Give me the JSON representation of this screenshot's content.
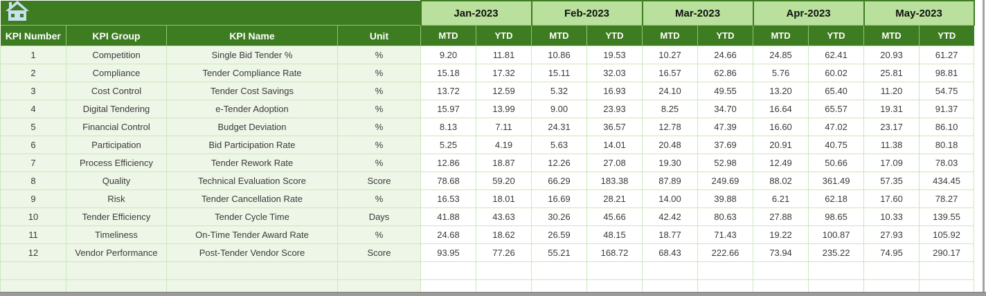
{
  "banner": {
    "home_icon": "home-icon"
  },
  "table": {
    "columns": [
      "KPI Number",
      "KPI Group",
      "KPI Name",
      "Unit"
    ],
    "months": [
      "Jan-2023",
      "Feb-2023",
      "Mar-2023",
      "Apr-2023",
      "May-2023"
    ],
    "period_headers": [
      "MTD",
      "YTD"
    ],
    "rows": [
      {
        "kpi_number": "1",
        "kpi_group": "Competition",
        "kpi_name": "Single Bid Tender %",
        "unit": "%",
        "values": [
          "9.20",
          "11.81",
          "10.86",
          "19.53",
          "10.27",
          "24.66",
          "24.85",
          "62.41",
          "20.93",
          "61.27"
        ]
      },
      {
        "kpi_number": "2",
        "kpi_group": "Compliance",
        "kpi_name": "Tender Compliance Rate",
        "unit": "%",
        "values": [
          "15.18",
          "17.32",
          "15.11",
          "32.03",
          "16.57",
          "62.86",
          "5.76",
          "60.02",
          "25.81",
          "98.81"
        ]
      },
      {
        "kpi_number": "3",
        "kpi_group": "Cost Control",
        "kpi_name": "Tender Cost Savings",
        "unit": "%",
        "values": [
          "13.72",
          "12.59",
          "5.32",
          "16.93",
          "24.10",
          "49.55",
          "13.20",
          "65.40",
          "11.20",
          "54.75"
        ]
      },
      {
        "kpi_number": "4",
        "kpi_group": "Digital Tendering",
        "kpi_name": "e-Tender Adoption",
        "unit": "%",
        "values": [
          "15.97",
          "13.99",
          "9.00",
          "23.93",
          "8.25",
          "34.70",
          "16.64",
          "65.57",
          "19.31",
          "91.37"
        ]
      },
      {
        "kpi_number": "5",
        "kpi_group": "Financial Control",
        "kpi_name": "Budget Deviation",
        "unit": "%",
        "values": [
          "8.13",
          "7.11",
          "24.31",
          "36.57",
          "12.78",
          "47.39",
          "16.60",
          "47.02",
          "23.17",
          "86.10"
        ]
      },
      {
        "kpi_number": "6",
        "kpi_group": "Participation",
        "kpi_name": "Bid Participation Rate",
        "unit": "%",
        "values": [
          "5.25",
          "4.19",
          "5.63",
          "14.01",
          "20.48",
          "37.69",
          "20.91",
          "40.75",
          "11.38",
          "80.18"
        ]
      },
      {
        "kpi_number": "7",
        "kpi_group": "Process Efficiency",
        "kpi_name": "Tender Rework Rate",
        "unit": "%",
        "values": [
          "12.86",
          "18.87",
          "12.26",
          "27.08",
          "19.30",
          "52.98",
          "12.49",
          "50.66",
          "17.09",
          "78.03"
        ]
      },
      {
        "kpi_number": "8",
        "kpi_group": "Quality",
        "kpi_name": "Technical Evaluation Score",
        "unit": "Score",
        "values": [
          "78.68",
          "59.20",
          "66.29",
          "183.38",
          "87.89",
          "249.69",
          "88.02",
          "361.49",
          "57.35",
          "434.45"
        ]
      },
      {
        "kpi_number": "9",
        "kpi_group": "Risk",
        "kpi_name": "Tender Cancellation Rate",
        "unit": "%",
        "values": [
          "16.53",
          "18.01",
          "16.69",
          "28.21",
          "14.00",
          "39.88",
          "6.21",
          "62.18",
          "17.60",
          "78.27"
        ]
      },
      {
        "kpi_number": "10",
        "kpi_group": "Tender Efficiency",
        "kpi_name": "Tender Cycle Time",
        "unit": "Days",
        "values": [
          "41.88",
          "43.63",
          "30.26",
          "45.66",
          "42.42",
          "80.63",
          "27.88",
          "98.65",
          "10.33",
          "139.55"
        ]
      },
      {
        "kpi_number": "11",
        "kpi_group": "Timeliness",
        "kpi_name": "On-Time Tender Award Rate",
        "unit": "%",
        "values": [
          "24.68",
          "18.62",
          "26.59",
          "48.15",
          "18.77",
          "71.43",
          "19.22",
          "100.87",
          "27.93",
          "105.92"
        ]
      },
      {
        "kpi_number": "12",
        "kpi_group": "Vendor Performance",
        "kpi_name": "Post-Tender Vendor Score",
        "unit": "Score",
        "values": [
          "93.95",
          "77.26",
          "55.21",
          "168.72",
          "68.43",
          "222.66",
          "73.94",
          "235.22",
          "74.95",
          "290.17"
        ]
      }
    ],
    "empty_row_count": 2
  },
  "colors": {
    "header_green": "#3e7c22",
    "month_band_green": "#b9e09c",
    "grid_line_green": "#cbe7ba",
    "left_cell_tint": "#eef6e7",
    "home_icon_blue": "#c9dff2"
  }
}
